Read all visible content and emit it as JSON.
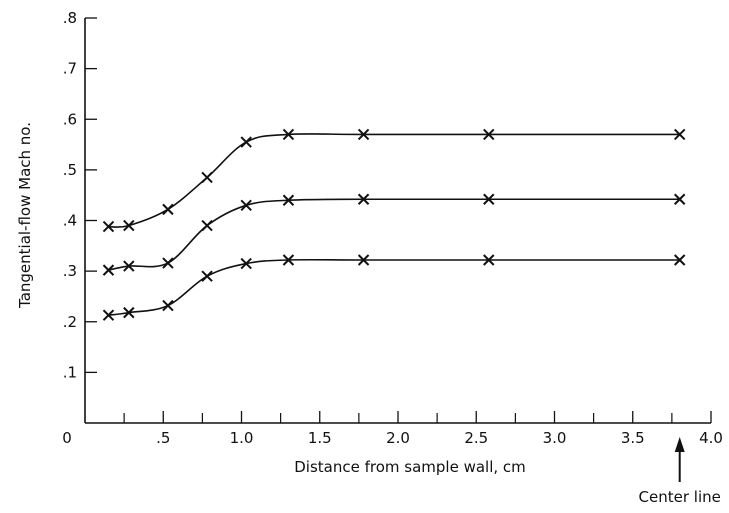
{
  "chart_data": {
    "type": "line",
    "title": "",
    "xlabel": "Distance from sample wall, cm",
    "ylabel": "Tangential-flow Mach no.",
    "xlim": [
      0,
      4.0
    ],
    "ylim": [
      0,
      0.8
    ],
    "grid": false,
    "x_ticks": [
      0,
      0.5,
      1.0,
      1.5,
      2.0,
      2.5,
      3.0,
      3.5,
      4.0
    ],
    "x_tick_labels": [
      "0",
      ".5",
      "1.0",
      "1.5",
      "2.0",
      "2.5",
      "3.0",
      "3.5",
      "4.0"
    ],
    "x_minor_ticks": [
      0.25,
      0.75,
      1.25,
      1.75,
      2.25,
      2.75,
      3.25,
      3.75
    ],
    "y_ticks": [
      0.1,
      0.2,
      0.3,
      0.4,
      0.5,
      0.6,
      0.7,
      0.8
    ],
    "y_tick_labels": [
      ".1",
      ".2",
      ".3",
      ".4",
      ".5",
      ".6",
      ".7",
      ".8"
    ],
    "annotation": {
      "text": "Center line",
      "x": 3.8
    },
    "series": [
      {
        "x": [
          0.15,
          0.28,
          0.53,
          0.78,
          1.03,
          1.3,
          1.78,
          2.58,
          3.8
        ],
        "y": [
          0.388,
          0.39,
          0.422,
          0.485,
          0.555,
          0.57,
          0.57,
          0.57,
          0.57
        ]
      },
      {
        "x": [
          0.15,
          0.28,
          0.53,
          0.78,
          1.03,
          1.3,
          1.78,
          2.58,
          3.8
        ],
        "y": [
          0.302,
          0.31,
          0.316,
          0.39,
          0.43,
          0.44,
          0.442,
          0.442,
          0.442
        ]
      },
      {
        "x": [
          0.15,
          0.28,
          0.53,
          0.78,
          1.03,
          1.3,
          1.78,
          2.58,
          3.8
        ],
        "y": [
          0.213,
          0.218,
          0.232,
          0.29,
          0.315,
          0.322,
          0.322,
          0.322,
          0.322
        ]
      }
    ]
  }
}
